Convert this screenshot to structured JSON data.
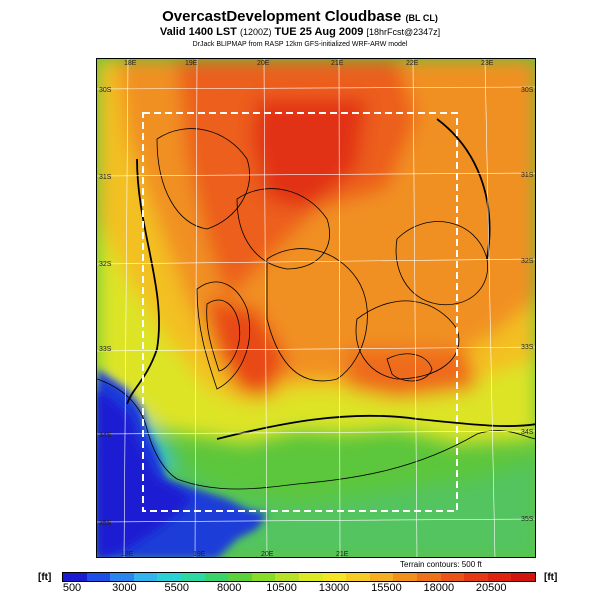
{
  "title": {
    "main": "OvercastDevelopment Cloudbase",
    "main_suffix": "(BL CL)",
    "valid": "Valid 1400 LST",
    "valid_code": "(1200Z)",
    "valid_date": "TUE 25 Aug 2009",
    "valid_fcst": "[18hrFcst@2347z]",
    "credit": "DrJack BLIPMAP from RASP 12km GFS-initialized WRF-ARW model"
  },
  "map": {
    "lon_labels": [
      "18E",
      "19E",
      "20E",
      "21E",
      "22E",
      "23E"
    ],
    "lat_labels": [
      "30S",
      "31S",
      "32S",
      "33S",
      "34S",
      "35S"
    ],
    "terrain_note": "Terrain contours: 500 ft"
  },
  "colorbar": {
    "unit_left": "[ft]",
    "unit_right": "[ft]",
    "tick_labels": [
      "500",
      "3000",
      "5500",
      "8000",
      "10500",
      "13000",
      "15500",
      "18000",
      "20500"
    ],
    "colors": [
      "#1b1bd2",
      "#1f4fe6",
      "#2a86ee",
      "#33b4ee",
      "#2ad2d6",
      "#2ed8a2",
      "#3ad26a",
      "#5ad23a",
      "#8adc2a",
      "#b8e228",
      "#dcea26",
      "#f4e626",
      "#f8cc26",
      "#f6ae22",
      "#f2901e",
      "#ee721c",
      "#ea5418",
      "#e43a14",
      "#de2410",
      "#d2140e"
    ]
  }
}
